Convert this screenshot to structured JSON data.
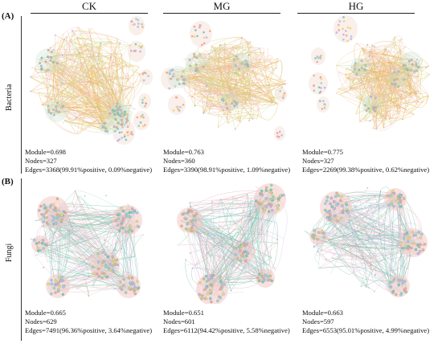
{
  "columns": [
    "CK",
    "MG",
    "HG"
  ],
  "rows": [
    {
      "panel": "(A)",
      "label": "Bacteria",
      "networks": [
        {
          "stats": [
            "Module=0.698",
            "Nodes=327",
            "Edges=3368(99.91%positive, 0.09%negative)"
          ]
        },
        {
          "stats": [
            "Module=0.763",
            "Nodes=360",
            "Edges=3390(98.91%positive, 1.09%negative)"
          ]
        },
        {
          "stats": [
            "Module=0.775",
            "Nodes=327",
            "Edges=2269(99.38%positive, 0.62%negative)"
          ]
        }
      ]
    },
    {
      "panel": "(B)",
      "label": "Fungi",
      "networks": [
        {
          "stats": [
            "Module=0.665",
            "Nodes=629",
            "Edges=7491(96.36%positive, 3.64%negative)"
          ]
        },
        {
          "stats": [
            "Module=0.651",
            "Nodes=601",
            "Edges=6112(94.42%positive, 5.58%negative)"
          ]
        },
        {
          "stats": [
            "Module=0.663",
            "Nodes=597",
            "Edges=6553(95.01%positive, 4.99%negative)"
          ]
        }
      ]
    }
  ],
  "colors": {
    "bacteria_edge": "#e8b04a",
    "bacteria_edge_alt": "#f2c77a",
    "fungi_edge": "#4fb89a",
    "fungi_edge_alt": "#e8a0a0",
    "node_palette": [
      "#f4a3a0",
      "#9ed6b8",
      "#f7d27c",
      "#a8c8ee",
      "#c9b3e0",
      "#f0b38a",
      "#7fc8c0"
    ]
  }
}
